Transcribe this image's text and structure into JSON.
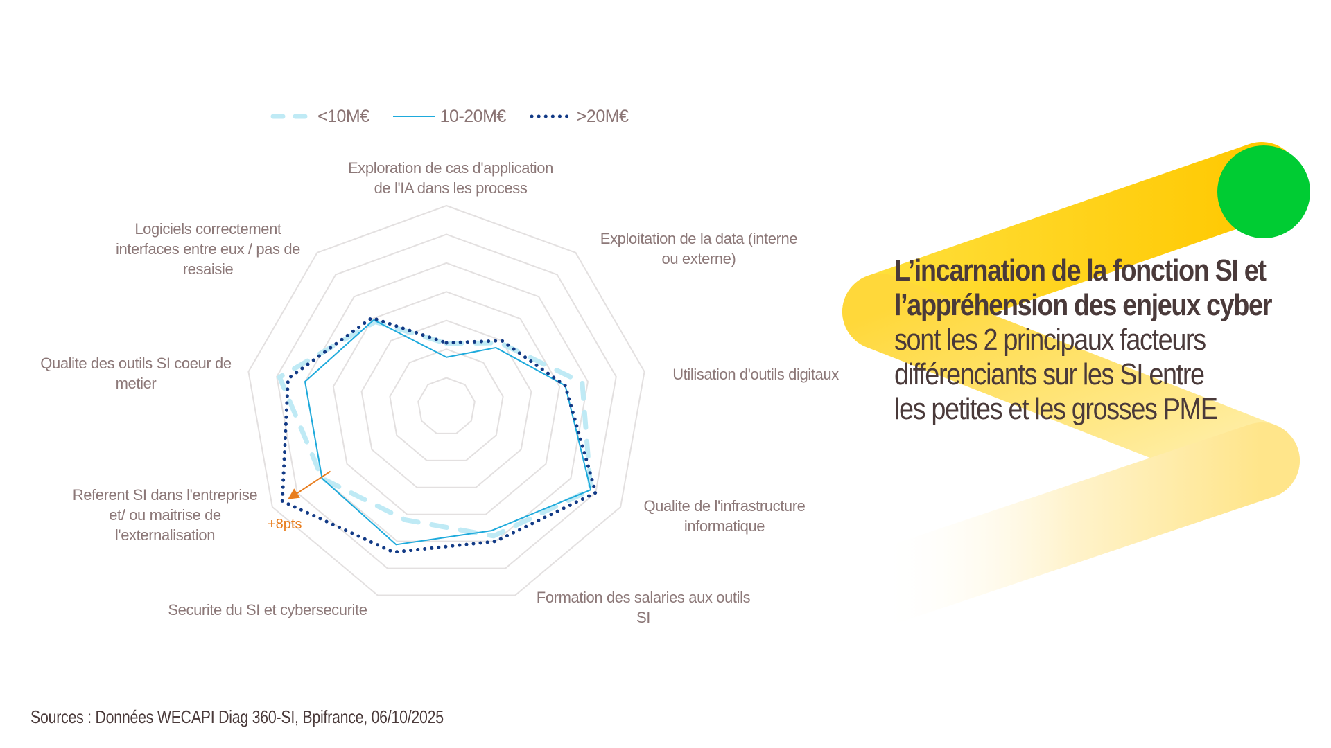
{
  "legend": [
    {
      "label": "<10M€",
      "color": "#bfeaf5",
      "style": "dashed"
    },
    {
      "label": "10-20M€",
      "color": "#1eaadc",
      "style": "solid"
    },
    {
      "label": ">20M€",
      "color": "#123a86",
      "style": "dotted"
    }
  ],
  "axes": [
    {
      "label_lines": [
        "Exploration de cas d'application",
        "de l'IA dans les process"
      ]
    },
    {
      "label_lines": [
        "Exploitation de la data (interne",
        "ou externe)"
      ]
    },
    {
      "label_lines": [
        "Utilisation d'outils digitaux"
      ]
    },
    {
      "label_lines": [
        "Qualite de l'infrastructure",
        "informatique"
      ]
    },
    {
      "label_lines": [
        "Formation des salaries aux outils",
        "SI"
      ]
    },
    {
      "label_lines": [
        "Securite du SI et cybersecurite"
      ]
    },
    {
      "label_lines": [
        "Referent SI dans l'entreprise",
        "et/ ou maitrise de",
        "l'externalisation"
      ]
    },
    {
      "label_lines": [
        "Qualite des outils SI coeur de",
        "metier"
      ]
    },
    {
      "label_lines": [
        "Logiciels correctement",
        "interfaces entre eux / pas de",
        "resaisie"
      ]
    }
  ],
  "annotation": {
    "text": "+8pts",
    "color": "#e87d1e"
  },
  "headline": {
    "bold_lines": [
      "L’incarnation de la fonction SI et",
      "l’appréhension des enjeux cyber"
    ],
    "regular_lines": [
      "sont les 2 principaux facteurs",
      "différenciants sur les SI entre",
      "les petites et les grosses PME"
    ]
  },
  "source": "Sources : Données WECAPI Diag 360-SI, Bpifrance, 06/10/2025",
  "colors": {
    "accent_yellow": "#ffcc00",
    "accent_green": "#00cc33",
    "text_dark": "#4a3a3a",
    "label_grey": "#8c7878",
    "grid": "#e3e0e0"
  },
  "chart_data": {
    "type": "radar",
    "title": "",
    "categories": [
      "Exploration de cas d'application de l'IA dans les process",
      "Exploitation de la data (interne ou externe)",
      "Utilisation d'outils digitaux",
      "Qualite de l'infrastructure informatique",
      "Formation des salaries aux outils SI",
      "Securite du SI et cybersecurite",
      "Referent SI dans l'entreprise et/ ou maitrise de l'externalisation",
      "Qualite des outils SI coeur de metier",
      "Logiciels correctement interfaces entre eux / pas de resaisie"
    ],
    "series": [
      {
        "name": "<10M€",
        "values": [
          11,
          14.5,
          24,
          29,
          24,
          21,
          25,
          29.5,
          19.3
        ]
      },
      {
        "name": "10-20M€",
        "values": [
          8.6,
          13.4,
          21,
          29,
          23,
          25.6,
          25,
          25,
          19.7
        ]
      },
      {
        "name": ">20M€",
        "values": [
          11.1,
          15,
          21,
          30,
          25,
          27,
          33,
          28,
          20.2
        ]
      }
    ],
    "rlim": [
      0,
      35
    ],
    "grid_rings": 7,
    "legend_position": "top",
    "annotations": [
      {
        "axis": "Referent SI dans l'entreprise et/ ou maitrise de l'externalisation",
        "text": "+8pts",
        "from_series": "10-20M€",
        "to_series": ">20M€"
      }
    ]
  }
}
